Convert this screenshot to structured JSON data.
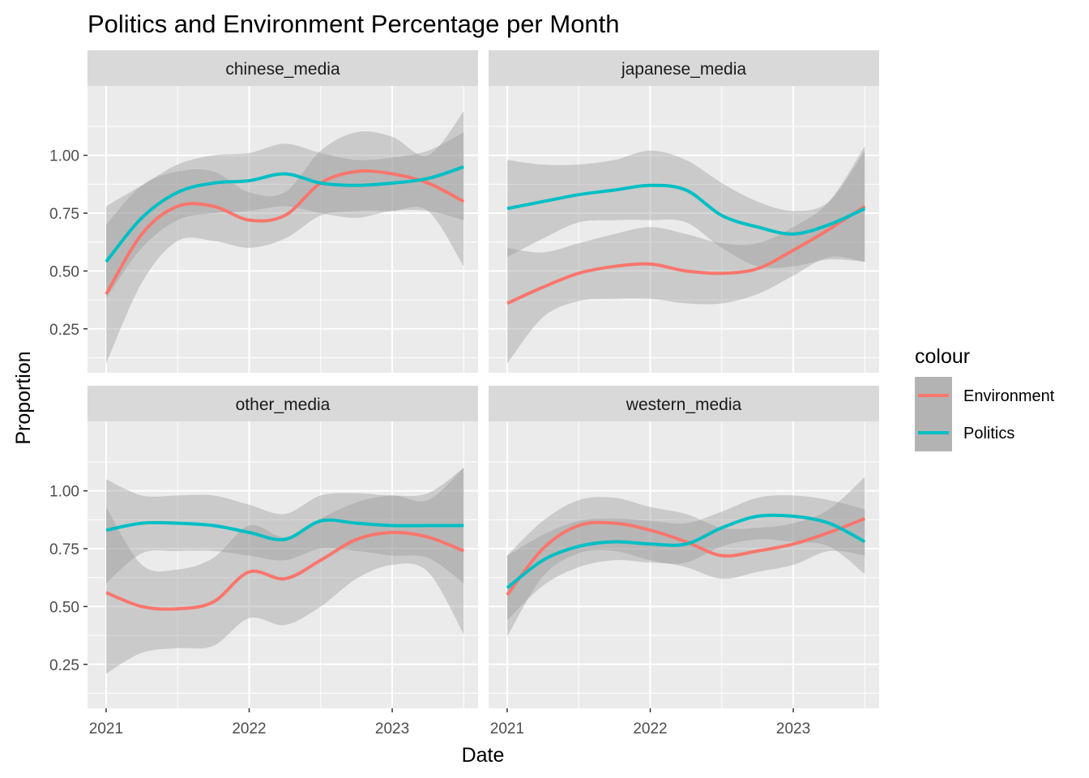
{
  "chart_data": {
    "type": "line",
    "title": "Politics and Environment Percentage per Month",
    "xlabel": "Date",
    "ylabel": "Proportion",
    "x_ticks": [
      "2021",
      "2022",
      "2023"
    ],
    "y_ticks": [
      "0.25",
      "0.50",
      "0.75",
      "1.00"
    ],
    "xlim": [
      2020.87,
      2023.6
    ],
    "ylim": [
      0.06,
      1.3
    ],
    "grid": true,
    "legend": {
      "title": "colour",
      "position": "right",
      "entries": [
        {
          "name": "Environment",
          "color": "#F8766D"
        },
        {
          "name": "Politics",
          "color": "#00BFC4"
        }
      ]
    },
    "x": [
      2021.0,
      2021.25,
      2021.5,
      2021.75,
      2022.0,
      2022.25,
      2022.5,
      2022.75,
      2023.0,
      2023.25,
      2023.5
    ],
    "panels": [
      {
        "name": "chinese_media",
        "series": [
          {
            "name": "Environment",
            "values": [
              0.4,
              0.66,
              0.78,
              0.78,
              0.72,
              0.74,
              0.88,
              0.93,
              0.92,
              0.88,
              0.8
            ],
            "lower": [
              0.1,
              0.45,
              0.63,
              0.63,
              0.6,
              0.64,
              0.74,
              0.76,
              0.76,
              0.76,
              0.52
            ],
            "upper": [
              0.7,
              0.87,
              0.93,
              0.93,
              0.84,
              0.84,
              1.02,
              1.1,
              1.08,
              1.0,
              1.19
            ]
          },
          {
            "name": "Politics",
            "values": [
              0.54,
              0.73,
              0.84,
              0.88,
              0.89,
              0.92,
              0.88,
              0.87,
              0.88,
              0.9,
              0.95
            ],
            "lower": [
              0.38,
              0.6,
              0.72,
              0.75,
              0.76,
              0.78,
              0.75,
              0.73,
              0.76,
              0.76,
              0.72
            ],
            "upper": [
              0.78,
              0.87,
              0.96,
              1.0,
              1.01,
              1.05,
              1.01,
              0.98,
              0.99,
              1.02,
              1.1
            ]
          }
        ]
      },
      {
        "name": "japanese_media",
        "series": [
          {
            "name": "Environment",
            "values": [
              0.36,
              0.43,
              0.49,
              0.52,
              0.53,
              0.5,
              0.49,
              0.51,
              0.59,
              0.68,
              0.78
            ],
            "lower": [
              0.1,
              0.3,
              0.37,
              0.38,
              0.38,
              0.36,
              0.36,
              0.4,
              0.48,
              0.56,
              0.54
            ],
            "upper": [
              0.6,
              0.58,
              0.62,
              0.66,
              0.69,
              0.66,
              0.62,
              0.62,
              0.69,
              0.8,
              1.04
            ]
          },
          {
            "name": "Politics",
            "values": [
              0.77,
              0.8,
              0.83,
              0.85,
              0.87,
              0.85,
              0.74,
              0.69,
              0.66,
              0.7,
              0.77
            ],
            "lower": [
              0.56,
              0.64,
              0.71,
              0.72,
              0.72,
              0.71,
              0.6,
              0.52,
              0.52,
              0.55,
              0.54
            ],
            "upper": [
              0.98,
              0.96,
              0.96,
              0.98,
              1.02,
              0.98,
              0.88,
              0.8,
              0.76,
              0.8,
              1.02
            ]
          }
        ]
      },
      {
        "name": "other_media",
        "series": [
          {
            "name": "Environment",
            "values": [
              0.56,
              0.5,
              0.49,
              0.52,
              0.65,
              0.62,
              0.7,
              0.79,
              0.82,
              0.8,
              0.74
            ],
            "lower": [
              0.21,
              0.3,
              0.32,
              0.33,
              0.45,
              0.42,
              0.5,
              0.62,
              0.68,
              0.65,
              0.38
            ],
            "upper": [
              0.93,
              0.68,
              0.66,
              0.71,
              0.85,
              0.8,
              0.88,
              0.95,
              0.98,
              0.96,
              1.1
            ]
          },
          {
            "name": "Politics",
            "values": [
              0.83,
              0.86,
              0.86,
              0.85,
              0.82,
              0.79,
              0.87,
              0.86,
              0.85,
              0.85,
              0.85
            ],
            "lower": [
              0.6,
              0.73,
              0.74,
              0.74,
              0.72,
              0.7,
              0.75,
              0.74,
              0.72,
              0.71,
              0.6
            ],
            "upper": [
              1.05,
              0.98,
              0.98,
              0.98,
              0.94,
              0.9,
              0.98,
              0.99,
              0.98,
              0.99,
              1.1
            ]
          }
        ]
      },
      {
        "name": "western_media",
        "series": [
          {
            "name": "Environment",
            "values": [
              0.55,
              0.75,
              0.85,
              0.86,
              0.83,
              0.78,
              0.72,
              0.74,
              0.77,
              0.82,
              0.88
            ],
            "lower": [
              0.37,
              0.63,
              0.73,
              0.74,
              0.7,
              0.67,
              0.62,
              0.65,
              0.68,
              0.74,
              0.72
            ],
            "upper": [
              0.72,
              0.87,
              0.96,
              0.97,
              0.93,
              0.9,
              0.84,
              0.84,
              0.86,
              0.92,
              1.06
            ]
          },
          {
            "name": "Politics",
            "values": [
              0.58,
              0.7,
              0.76,
              0.78,
              0.77,
              0.77,
              0.84,
              0.89,
              0.89,
              0.86,
              0.78
            ],
            "lower": [
              0.44,
              0.59,
              0.67,
              0.7,
              0.69,
              0.69,
              0.76,
              0.79,
              0.78,
              0.76,
              0.64
            ],
            "upper": [
              0.72,
              0.81,
              0.87,
              0.88,
              0.87,
              0.86,
              0.91,
              0.97,
              0.98,
              0.96,
              0.92
            ]
          }
        ]
      }
    ]
  }
}
